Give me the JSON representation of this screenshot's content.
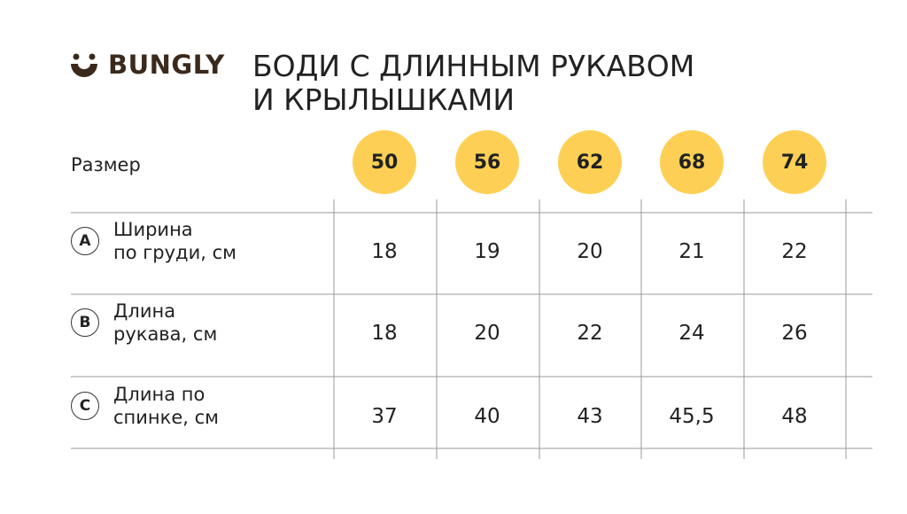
{
  "header": {
    "brand": "BUNGLY",
    "title_lines": [
      "БОДИ С ДЛИННЫМ РУКАВОМ",
      "И КРЫЛЫШКАМИ"
    ]
  },
  "table": {
    "size_label": "Размер",
    "sizes": [
      "50",
      "56",
      "62",
      "68",
      "74"
    ],
    "rows": [
      {
        "letter": "A",
        "label_lines": [
          "Ширина",
          "по груди, см"
        ],
        "values": [
          "18",
          "19",
          "20",
          "21",
          "22"
        ]
      },
      {
        "letter": "B",
        "label_lines": [
          "Длина",
          "рукава, см"
        ],
        "values": [
          "18",
          "20",
          "22",
          "24",
          "26"
        ]
      },
      {
        "letter": "C",
        "label_lines": [
          "Длина по",
          "спинке, см"
        ],
        "values": [
          "37",
          "40",
          "43",
          "45,5",
          "48"
        ]
      }
    ]
  }
}
